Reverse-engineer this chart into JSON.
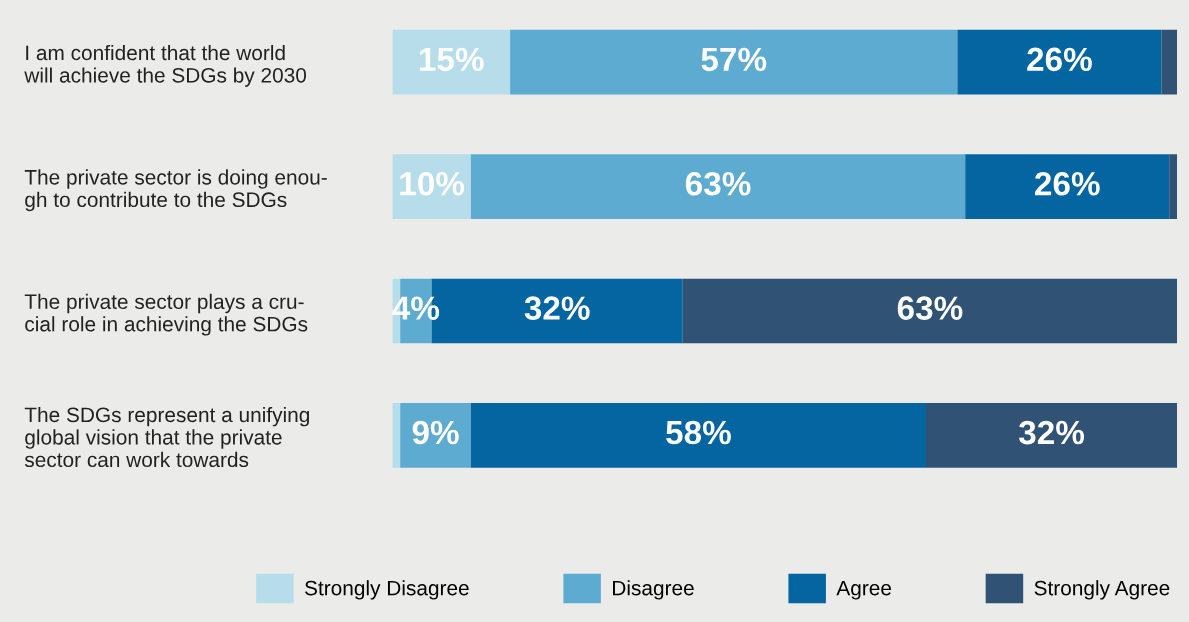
{
  "chart_data": {
    "type": "bar",
    "orientation": "horizontal",
    "stacked": true,
    "categories": [
      "I am confident that the world\nwill achieve the SDGs by 2030",
      "The private sector is doing enou-\ngh to contribute to the SDGs",
      "The private sector plays a cru-\ncial role in achieving the SDGs",
      "The SDGs represent a unifying\nglobal vision that the private\nsector can work towards"
    ],
    "series": [
      {
        "name": "Strongly Disagree",
        "color": "#b7dcea",
        "values": [
          15,
          10,
          1,
          1
        ],
        "value_labels": [
          "15%",
          "10%",
          null,
          null
        ]
      },
      {
        "name": "Disagree",
        "color": "#5eabd2",
        "values": [
          57,
          63,
          4,
          9
        ],
        "value_labels": [
          "57%",
          "63%",
          "4%",
          "9%"
        ]
      },
      {
        "name": "Agree",
        "color": "#0565a0",
        "values": [
          26,
          26,
          32,
          58
        ],
        "value_labels": [
          "26%",
          "26%",
          "32%",
          "58%"
        ]
      },
      {
        "name": "Strongly Agree",
        "color": "#2f5275",
        "values": [
          2,
          1,
          63,
          32
        ],
        "value_labels": [
          null,
          null,
          "63%",
          "32%"
        ]
      }
    ],
    "xlim": [
      0,
      100
    ],
    "tick_labels": "y",
    "legend": "bottom",
    "grid": false
  }
}
